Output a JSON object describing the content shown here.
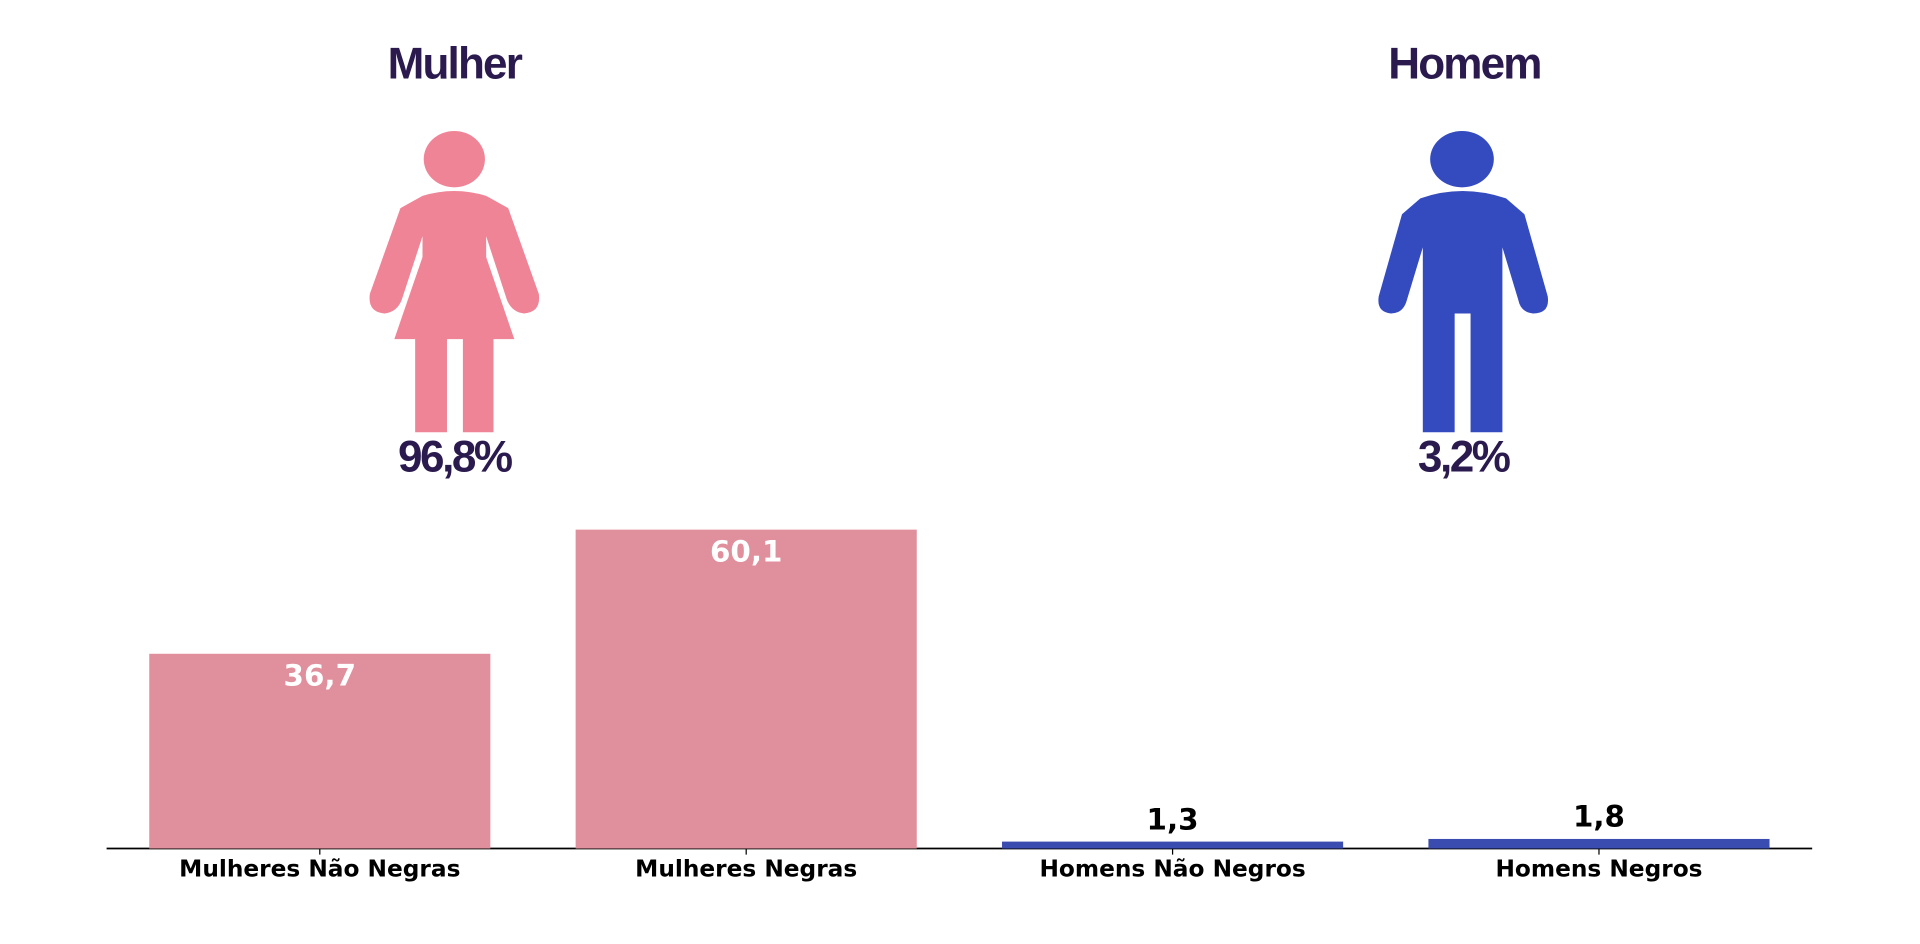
{
  "figures": [
    {
      "title": "Mulher",
      "percent": "96,8%",
      "color": "#ef8497"
    },
    {
      "title": "Homem",
      "percent": "3,2%",
      "color": "#344bbf"
    }
  ],
  "chart_data": {
    "type": "bar",
    "categories": [
      "Mulheres Não Negras",
      "Mulheres Negras",
      "Homens Não Negros",
      "Homens Negros"
    ],
    "values": [
      36.7,
      60.1,
      1.3,
      1.8
    ],
    "value_labels": [
      "36,7",
      "60,1",
      "1,3",
      "1,8"
    ],
    "colors": [
      "#e08f9c",
      "#e08f9c",
      "#3a4cb0",
      "#3a4cb0"
    ],
    "ylim": [
      0,
      63
    ]
  }
}
